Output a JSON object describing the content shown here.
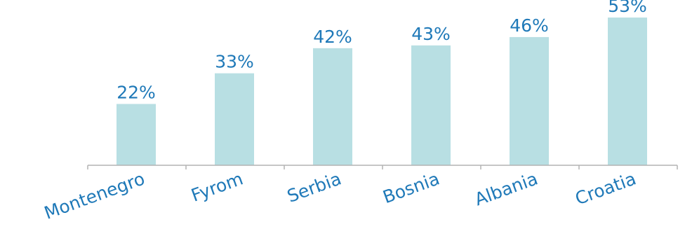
{
  "chart_data": {
    "type": "bar",
    "categories": [
      "Montenegro",
      "Fyrom",
      "Serbia",
      "Bosnia",
      "Albania",
      "Croatia"
    ],
    "values": [
      22,
      33,
      42,
      43,
      46,
      53
    ],
    "value_labels": [
      "22%",
      "33%",
      "42%",
      "43%",
      "46%",
      "53%"
    ],
    "unit": "%",
    "title": "",
    "xlabel": "",
    "ylabel": "",
    "ylim": [
      0,
      60
    ],
    "grid": false,
    "legend": "none",
    "colors": {
      "bar": "#b8dfe3",
      "label": "#1f79b8",
      "axis": "#b3b3b3"
    }
  }
}
